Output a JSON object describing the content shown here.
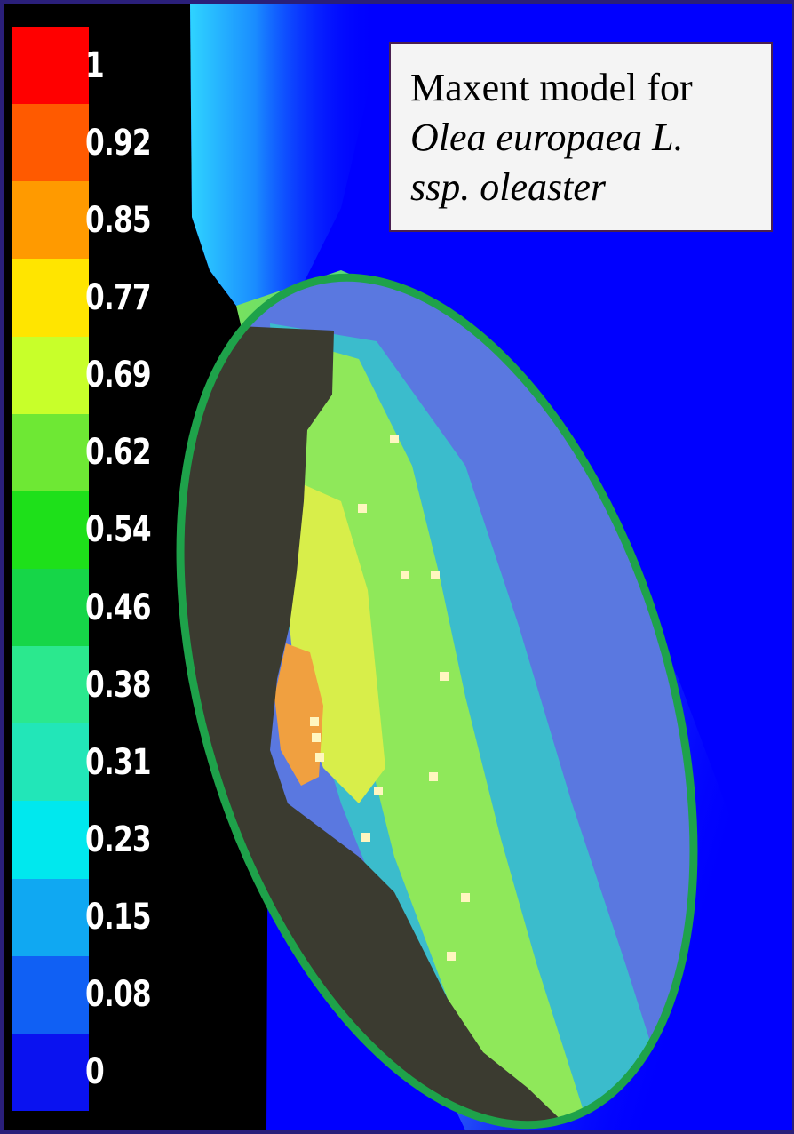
{
  "title": {
    "line1": "Maxent model for",
    "line2": "Olea europaea L.",
    "line3": "ssp. oleaster"
  },
  "legend": {
    "labels": [
      "1",
      "0.92",
      "0.85",
      "0.77",
      "0.69",
      "0.62",
      "0.54",
      "0.46",
      "0.38",
      "0.31",
      "0.23",
      "0.15",
      "0.08",
      "0"
    ],
    "colors": [
      "#ff0000",
      "#ff5a00",
      "#ff9a00",
      "#ffe500",
      "#c8ff2a",
      "#6ee834",
      "#1ee01a",
      "#16d648",
      "#2be88e",
      "#22e6b8",
      "#00e8ee",
      "#10a8f2",
      "#1060f4",
      "#0a12f0"
    ]
  },
  "colors": {
    "sea": "#0000ff",
    "land_outside": "#000000",
    "land_unsuitable": "#3b3b30",
    "highlight_ellipse": "#1ea24a",
    "occurrence_point": "#fff6c0"
  }
}
